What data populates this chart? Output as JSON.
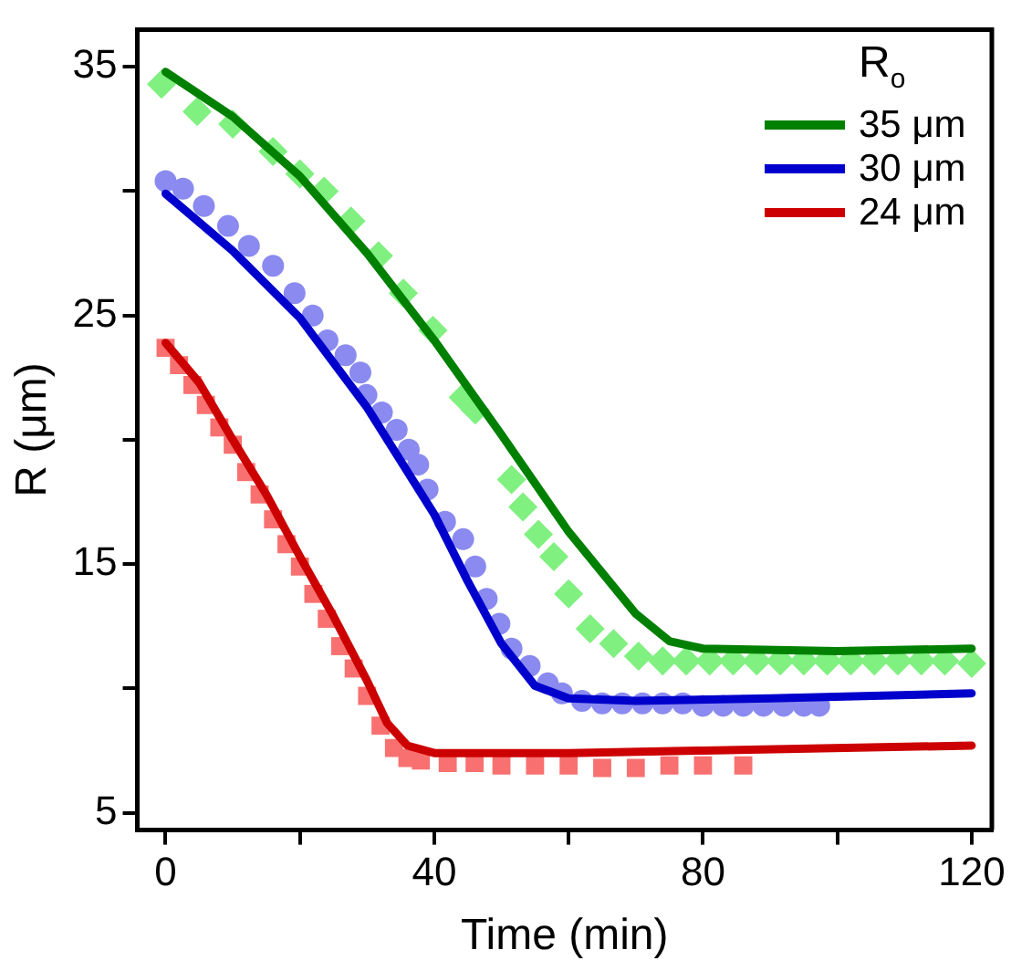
{
  "chart_data": {
    "type": "line",
    "xlabel": "Time (min)",
    "ylabel": "R (μm)",
    "legend_title": "R$_{o}$",
    "legend": "top right",
    "grid": false,
    "xlim": [
      -4.2,
      123
    ],
    "xticks": [
      0,
      {
        "value": 20,
        "label": null
      },
      40,
      {
        "value": 60,
        "label": null
      },
      80,
      {
        "value": 100,
        "label": null
      },
      120
    ],
    "ylim": [
      4.3,
      36.5
    ],
    "yticks": [
      5,
      {
        "value": 10,
        "label": null
      },
      15,
      {
        "value": 20,
        "label": null
      },
      25,
      {
        "value": 30,
        "label": null
      },
      35
    ],
    "series": [
      {
        "type": "scatter",
        "marker": "diamond",
        "color": "#80f080",
        "x": [
          -0.6,
          4.7,
          10,
          16,
          20,
          23.6,
          27.6,
          31.7,
          35.4,
          39.8,
          44.3,
          46.1,
          51.5,
          53.2,
          55.5,
          57.8,
          60,
          63.2,
          66.7,
          70.4,
          74,
          77.5,
          81,
          84.5,
          88,
          91.5,
          95,
          98.5,
          102,
          105.5,
          109,
          112.5,
          116,
          120
        ],
        "values": [
          34.3,
          33.2,
          32.7,
          31.6,
          30.7,
          30,
          28.8,
          27.4,
          25.9,
          24.4,
          21.7,
          21.2,
          18.4,
          17.3,
          16.2,
          15.3,
          13.8,
          12.4,
          11.8,
          11.3,
          11.1,
          11.1,
          11.1,
          11.1,
          11.1,
          11.1,
          11.1,
          11.1,
          11.1,
          11.1,
          11.1,
          11.1,
          11.1,
          11.0
        ]
      },
      {
        "type": "scatter",
        "marker": "circle",
        "color": "#8a8af0",
        "x": [
          0,
          2.6,
          5.7,
          9.3,
          12.4,
          16,
          19.2,
          21.9,
          24.1,
          26.8,
          29,
          29.9,
          32.2,
          34.4,
          36.2,
          37.6,
          39,
          41.6,
          44.3,
          46.1,
          47.8,
          49.7,
          51.5,
          54.2,
          56.9,
          59,
          62,
          65,
          68,
          71,
          74,
          77,
          80,
          83,
          86,
          89,
          92,
          95,
          97.3
        ],
        "values": [
          30.4,
          30.1,
          29.4,
          28.6,
          27.8,
          27,
          25.9,
          25,
          24,
          23.4,
          22.7,
          21.8,
          21.1,
          20.4,
          19.6,
          19,
          18,
          16.7,
          16,
          14.9,
          13.6,
          12.6,
          11.6,
          10.9,
          10.2,
          9.8,
          9.5,
          9.4,
          9.4,
          9.4,
          9.4,
          9.4,
          9.3,
          9.3,
          9.3,
          9.3,
          9.3,
          9.3,
          9.3
        ]
      },
      {
        "type": "scatter",
        "marker": "square",
        "color": "#f87070",
        "x": [
          0,
          2,
          4,
          6,
          8,
          10,
          12,
          14,
          16,
          18,
          20,
          22,
          24,
          26,
          28,
          30,
          32,
          34,
          36,
          38,
          42,
          46,
          50,
          55,
          60,
          65,
          70,
          75,
          80,
          86
        ],
        "values": [
          23.7,
          23,
          22.2,
          21.4,
          20.5,
          19.8,
          18.7,
          17.8,
          16.8,
          15.8,
          14.9,
          13.8,
          12.8,
          11.7,
          10.8,
          9.7,
          8.5,
          7.6,
          7.2,
          7.1,
          7.0,
          7.0,
          6.9,
          6.9,
          6.9,
          6.8,
          6.8,
          6.9,
          6.9,
          6.9
        ]
      },
      {
        "type": "line",
        "name": "35 μm",
        "color": "#008000",
        "marker": "none",
        "x": [
          0,
          10,
          20,
          30,
          40,
          50,
          60,
          70,
          75,
          80,
          100,
          120
        ],
        "values": [
          34.8,
          33,
          30.6,
          27.5,
          24,
          20.2,
          16.3,
          13,
          11.9,
          11.6,
          11.5,
          11.6
        ]
      },
      {
        "type": "line",
        "name": "30 μm",
        "color": "#0000cc",
        "marker": "none",
        "x": [
          0,
          10,
          20,
          30,
          40,
          45,
          50,
          55,
          60,
          70,
          90,
          120
        ],
        "values": [
          29.9,
          27.6,
          24.9,
          21.3,
          17,
          14.3,
          11.8,
          10.1,
          9.6,
          9.5,
          9.6,
          9.8
        ]
      },
      {
        "type": "line",
        "name": "24 μm",
        "color": "#cc0000",
        "marker": "none",
        "x": [
          0,
          5,
          10,
          15,
          20,
          25,
          30,
          33,
          36,
          40,
          60,
          80,
          120
        ],
        "values": [
          23.9,
          22.3,
          20,
          17.8,
          15.3,
          12.9,
          10.3,
          8.6,
          7.7,
          7.4,
          7.4,
          7.5,
          7.7
        ]
      }
    ]
  }
}
